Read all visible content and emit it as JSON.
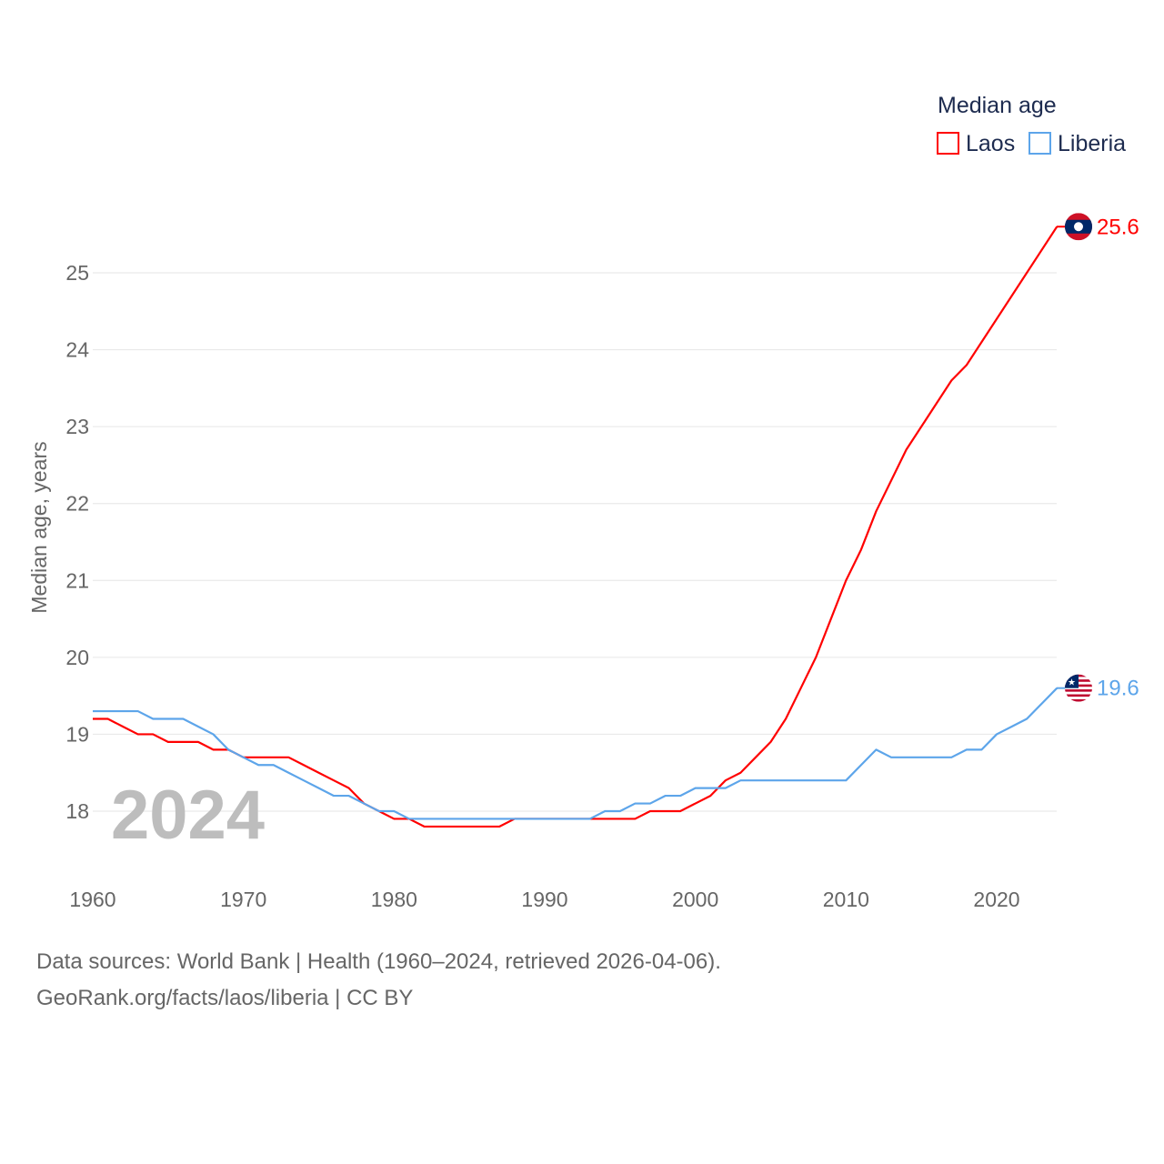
{
  "chart_data": {
    "type": "line",
    "ylabel": "Median age, years",
    "xlabel": "",
    "legend_title": "Median age",
    "legend_position": "top-right",
    "watermark_year": "2024",
    "xlim": [
      1960,
      2024
    ],
    "ylim": [
      17.3,
      25.9
    ],
    "x_ticks": [
      "1960",
      "1970",
      "1980",
      "1990",
      "2000",
      "2010",
      "2020"
    ],
    "y_ticks": [
      "18",
      "19",
      "20",
      "21",
      "22",
      "23",
      "24",
      "25"
    ],
    "grid": true,
    "x": [
      1960,
      1961,
      1962,
      1963,
      1964,
      1965,
      1966,
      1967,
      1968,
      1969,
      1970,
      1971,
      1972,
      1973,
      1974,
      1975,
      1976,
      1977,
      1978,
      1979,
      1980,
      1981,
      1982,
      1983,
      1984,
      1985,
      1986,
      1987,
      1988,
      1989,
      1990,
      1991,
      1992,
      1993,
      1994,
      1995,
      1996,
      1997,
      1998,
      1999,
      2000,
      2001,
      2002,
      2003,
      2004,
      2005,
      2006,
      2007,
      2008,
      2009,
      2010,
      2011,
      2012,
      2013,
      2014,
      2015,
      2016,
      2017,
      2018,
      2019,
      2020,
      2021,
      2022,
      2023,
      2024
    ],
    "series": [
      {
        "name": "Laos",
        "color": "#ff0000",
        "end_label": "25.6",
        "values": [
          19.2,
          19.2,
          19.1,
          19.0,
          19.0,
          18.9,
          18.9,
          18.9,
          18.8,
          18.8,
          18.7,
          18.7,
          18.7,
          18.7,
          18.6,
          18.5,
          18.4,
          18.3,
          18.1,
          18.0,
          17.9,
          17.9,
          17.8,
          17.8,
          17.8,
          17.8,
          17.8,
          17.8,
          17.9,
          17.9,
          17.9,
          17.9,
          17.9,
          17.9,
          17.9,
          17.9,
          17.9,
          18.0,
          18.0,
          18.0,
          18.1,
          18.2,
          18.4,
          18.5,
          18.7,
          18.9,
          19.2,
          19.6,
          20.0,
          20.5,
          21.0,
          21.4,
          21.9,
          22.3,
          22.7,
          23.0,
          23.3,
          23.6,
          23.8,
          24.1,
          24.4,
          24.7,
          25.0,
          25.3,
          25.6
        ]
      },
      {
        "name": "Liberia",
        "color": "#5da5ea",
        "end_label": "19.6",
        "values": [
          19.3,
          19.3,
          19.3,
          19.3,
          19.2,
          19.2,
          19.2,
          19.1,
          19.0,
          18.8,
          18.7,
          18.6,
          18.6,
          18.5,
          18.4,
          18.3,
          18.2,
          18.2,
          18.1,
          18.0,
          18.0,
          17.9,
          17.9,
          17.9,
          17.9,
          17.9,
          17.9,
          17.9,
          17.9,
          17.9,
          17.9,
          17.9,
          17.9,
          17.9,
          18.0,
          18.0,
          18.1,
          18.1,
          18.2,
          18.2,
          18.3,
          18.3,
          18.3,
          18.4,
          18.4,
          18.4,
          18.4,
          18.4,
          18.4,
          18.4,
          18.4,
          18.6,
          18.8,
          18.7,
          18.7,
          18.7,
          18.7,
          18.7,
          18.8,
          18.8,
          19.0,
          19.1,
          19.2,
          19.4,
          19.6
        ]
      }
    ]
  },
  "footer": {
    "source_line": "Data sources: World Bank | Health (1960–2024, retrieved 2026-04-06).",
    "url_line": "GeoRank.org/facts/laos/liberia | CC BY"
  }
}
